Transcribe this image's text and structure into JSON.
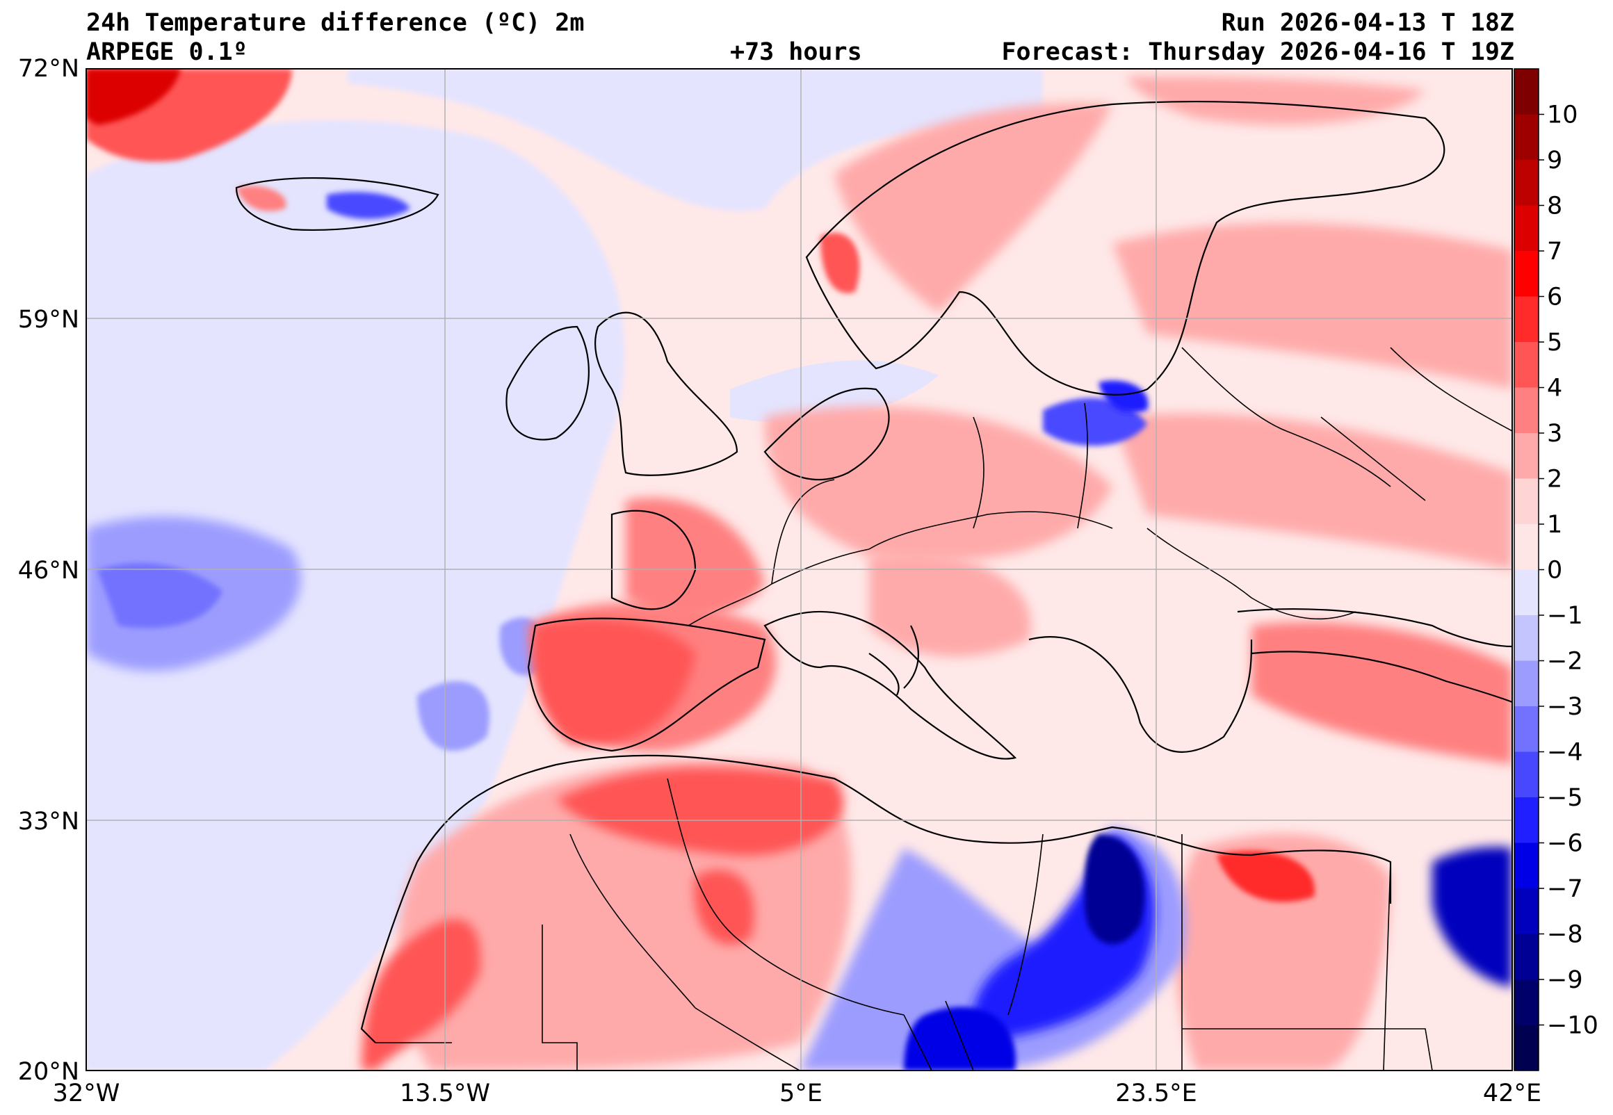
{
  "header": {
    "title": "24h Temperature difference (ºC) 2m",
    "model": "ARPEGE 0.1º",
    "lead": "+73 hours",
    "run": "Run 2026-04-13 T 18Z",
    "forecast": "Forecast: Thursday 2026-04-16 T 19Z"
  },
  "map": {
    "lon_range": [
      -32,
      42
    ],
    "lat_range": [
      20,
      72
    ],
    "lat_ticks": [
      "72°N",
      "59°N",
      "46°N",
      "33°N",
      "20°N"
    ],
    "lon_ticks": [
      "32°W",
      "13.5°W",
      "5°E",
      "23.5°E",
      "42°E"
    ]
  },
  "colorbar": {
    "labels": [
      "10",
      "9",
      "8",
      "7",
      "6",
      "5",
      "4",
      "3",
      "2",
      "1",
      "0",
      "−1",
      "−2",
      "−3",
      "−4",
      "−5",
      "−6",
      "−7",
      "−8",
      "−9",
      "−10"
    ],
    "colors": [
      "#7f0000",
      "#9e0000",
      "#bd0000",
      "#dc0000",
      "#ff0000",
      "#ff2a2a",
      "#ff5555",
      "#ff8080",
      "#ffaaaa",
      "#ffd4d4",
      "#ffe6e6",
      "#e4e4ff",
      "#c4c4ff",
      "#9c9cff",
      "#7272ff",
      "#4848ff",
      "#1f1fff",
      "#0000e6",
      "#0000bd",
      "#000094",
      "#00006b",
      "#000050"
    ]
  }
}
